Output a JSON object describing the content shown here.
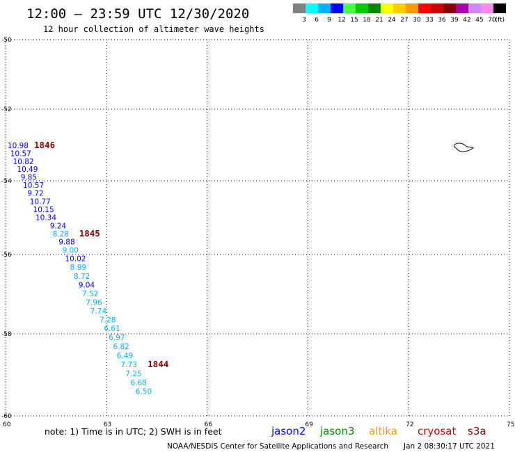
{
  "header": {
    "title": "12:00 — 23:59 UTC 12/30/2020",
    "subtitle": "12 hour collection of altimeter wave heights"
  },
  "color_scale": {
    "unit_label": "(ft)",
    "bins": [
      {
        "label": "3",
        "color": "#808080"
      },
      {
        "label": "6",
        "color": "#00ffff"
      },
      {
        "label": "9",
        "color": "#00b0ff"
      },
      {
        "label": "12",
        "color": "#0000ff"
      },
      {
        "label": "15",
        "color": "#44ff44"
      },
      {
        "label": "18",
        "color": "#00cc00"
      },
      {
        "label": "21",
        "color": "#008800"
      },
      {
        "label": "24",
        "color": "#ffff00"
      },
      {
        "label": "27",
        "color": "#ffcc00"
      },
      {
        "label": "30",
        "color": "#ff9900"
      },
      {
        "label": "33",
        "color": "#ff0000"
      },
      {
        "label": "36",
        "color": "#cc0000"
      },
      {
        "label": "39",
        "color": "#880000"
      },
      {
        "label": "42",
        "color": "#aa00aa"
      },
      {
        "label": "45",
        "color": "#cc88ff"
      },
      {
        "label": "70",
        "color": "#ff88ee"
      },
      {
        "label": "",
        "color": "#000000"
      }
    ]
  },
  "map": {
    "lon_range": [
      60,
      75
    ],
    "lat_range": [
      -60,
      -50
    ],
    "lon_ticks": [
      "60",
      "63",
      "66",
      "69",
      "72",
      "75"
    ],
    "lat_ticks": [
      "-50",
      "-52",
      "-54",
      "-56",
      "-58",
      "-60"
    ]
  },
  "observations": [
    {
      "value": "10.98",
      "lon": 60.06,
      "lat": -53.09,
      "color": "#0000ff"
    },
    {
      "value": "10.57",
      "lon": 60.14,
      "lat": -53.31,
      "color": "#0000ff"
    },
    {
      "value": "10.82",
      "lon": 60.22,
      "lat": -53.53,
      "color": "#0000ff"
    },
    {
      "value": "10.49",
      "lon": 60.34,
      "lat": -53.75,
      "color": "#0000ff"
    },
    {
      "value": "9.85",
      "lon": 60.45,
      "lat": -53.97,
      "color": "#0000ff"
    },
    {
      "value": "10.57",
      "lon": 60.52,
      "lat": -54.19,
      "color": "#0000ff"
    },
    {
      "value": "9.72",
      "lon": 60.65,
      "lat": -54.41,
      "color": "#0000ff"
    },
    {
      "value": "10.77",
      "lon": 60.72,
      "lat": -54.63,
      "color": "#0000ff"
    },
    {
      "value": "10.15",
      "lon": 60.82,
      "lat": -54.85,
      "color": "#0000ff"
    },
    {
      "value": "10.34",
      "lon": 60.89,
      "lat": -55.07,
      "color": "#0000ff"
    },
    {
      "value": "9.24",
      "lon": 61.32,
      "lat": -55.29,
      "color": "#0000ff"
    },
    {
      "value": "8.28",
      "lon": 61.4,
      "lat": -55.51,
      "color": "#00b0ff"
    },
    {
      "value": "9.88",
      "lon": 61.58,
      "lat": -55.73,
      "color": "#0000ff"
    },
    {
      "value": "9.00",
      "lon": 61.69,
      "lat": -55.95,
      "color": "#00b0ff"
    },
    {
      "value": "10.02",
      "lon": 61.77,
      "lat": -56.17,
      "color": "#0000ff"
    },
    {
      "value": "8.99",
      "lon": 61.92,
      "lat": -56.39,
      "color": "#00b0ff"
    },
    {
      "value": "8.72",
      "lon": 62.03,
      "lat": -56.61,
      "color": "#00b0ff"
    },
    {
      "value": "9.04",
      "lon": 62.17,
      "lat": -56.83,
      "color": "#0000ff"
    },
    {
      "value": "7.52",
      "lon": 62.28,
      "lat": -57.05,
      "color": "#00b0ff"
    },
    {
      "value": "7.96",
      "lon": 62.39,
      "lat": -57.27,
      "color": "#00b0ff"
    },
    {
      "value": "7.74",
      "lon": 62.52,
      "lat": -57.49,
      "color": "#00b0ff"
    },
    {
      "value": "7.28",
      "lon": 62.8,
      "lat": -57.71,
      "color": "#00b0ff"
    },
    {
      "value": "6.61",
      "lon": 62.93,
      "lat": -57.93,
      "color": "#00b0ff"
    },
    {
      "value": "6.97",
      "lon": 63.07,
      "lat": -58.15,
      "color": "#00b0ff"
    },
    {
      "value": "6.82",
      "lon": 63.2,
      "lat": -58.37,
      "color": "#00b0ff"
    },
    {
      "value": "6.49",
      "lon": 63.31,
      "lat": -58.59,
      "color": "#00b0ff"
    },
    {
      "value": "7.73",
      "lon": 63.43,
      "lat": -58.81,
      "color": "#00b0ff"
    },
    {
      "value": "7.25",
      "lon": 63.57,
      "lat": -59.03,
      "color": "#00b0ff"
    },
    {
      "value": "6.68",
      "lon": 63.72,
      "lat": -59.25,
      "color": "#00b0ff"
    },
    {
      "value": "6.50",
      "lon": 63.87,
      "lat": -59.47,
      "color": "#00b0ff"
    }
  ],
  "time_labels": [
    {
      "text": "1846",
      "lon": 60.85,
      "lat": -53.09,
      "color": "#880000"
    },
    {
      "text": "1845",
      "lon": 62.19,
      "lat": -55.51,
      "color": "#880000"
    },
    {
      "text": "1844",
      "lon": 64.23,
      "lat": -58.81,
      "color": "#880000"
    }
  ],
  "island": {
    "lon": 73.55,
    "lat": -53.1
  },
  "footer": {
    "note": "note:  1) Time is in UTC;  2) SWH is in feet",
    "satellites": [
      {
        "name": "jason2",
        "color": "#0000ff"
      },
      {
        "name": "jason3",
        "color": "#008800"
      },
      {
        "name": "altika",
        "color": "#ff9900"
      },
      {
        "name": "cryosat",
        "color": "#cc0000"
      },
      {
        "name": "s3a",
        "color": "#880000"
      }
    ],
    "credit": "NOAA/NESDIS Center for Satellite Applications and Research",
    "timestamp": "Jan  2 08:30:17 UTC 2021"
  }
}
